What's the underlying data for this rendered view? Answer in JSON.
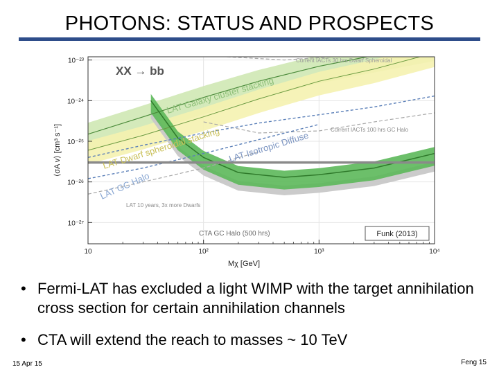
{
  "slide": {
    "title": "PHOTONS: STATUS AND PROSPECTS",
    "bullets": [
      "Fermi-LAT has excluded a light WIMP with the target annihilation cross section for certain annihilation channels",
      "CTA will extend the reach to masses ~ 10 TeV"
    ],
    "footer_date": "15 Apr 15",
    "footer_author": "Feng  15"
  },
  "chart_data": {
    "type": "line",
    "title": "XX → bb",
    "xlabel": "Mχ [GeV]",
    "ylabel": "⟨σA v⟩ [cm³ s⁻¹]",
    "xscale": "log",
    "yscale": "log",
    "xlim": [
      10,
      10000
    ],
    "ylim": [
      3e-28,
      1.2e-23
    ],
    "x_tick_labels": [
      "10",
      "10²",
      "10³",
      "10⁴"
    ],
    "y_tick_labels": [
      "10⁻²³",
      "10⁻²⁴",
      "10⁻²⁵",
      "10⁻²⁶",
      "10⁻²⁷"
    ],
    "thermal_cross_section": 3e-26,
    "source": "Funk (2013)",
    "series": [
      {
        "name": "Current IACTs 30 hrs Dwarf Spheroidal",
        "style": "gray-dashed",
        "x": [
          160,
          500,
          2000,
          10000
        ],
        "y": [
          1.2e-23,
          1e-23,
          1.3e-23,
          1.9e-23
        ]
      },
      {
        "name": "LAT Galaxy cluster stacking",
        "style": "light-green-band",
        "x": [
          10,
          30,
          100,
          300,
          1000,
          3000,
          10000
        ],
        "y": [
          1.5e-25,
          4e-25,
          1.2e-24,
          3e-24,
          7e-24,
          1.3e-23,
          2.5e-23
        ]
      },
      {
        "name": "Current IACTs 100 hrs GC Halo",
        "style": "gray-dashed",
        "x": [
          100,
          300,
          1000,
          3000,
          10000
        ],
        "y": [
          3e-25,
          1.6e-25,
          1.8e-25,
          3e-25,
          5e-25
        ]
      },
      {
        "name": "LAT Dwarf spheroidal stacking",
        "style": "yellow-band",
        "x": [
          10,
          30,
          100,
          300,
          1000,
          3000,
          10000
        ],
        "y": [
          6e-26,
          1.4e-25,
          4e-25,
          1.1e-24,
          3e-24,
          6e-24,
          1.5e-23
        ]
      },
      {
        "name": "LAT Isotropic Diffuse",
        "style": "blue-dashed",
        "x": [
          10,
          30,
          100,
          300,
          1000,
          3000,
          10000
        ],
        "y": [
          4e-26,
          8e-26,
          1.6e-25,
          2.8e-25,
          4.5e-25,
          7e-25,
          1.3e-24
        ]
      },
      {
        "name": "LAT GC Halo",
        "style": "blue-dashed",
        "x": [
          10,
          30,
          100,
          300,
          1000
        ],
        "y": [
          1.2e-26,
          2.2e-26,
          5e-26,
          1.1e-25,
          2.6e-25
        ]
      },
      {
        "name": "LAT 10 years, 3x more Dwarfs",
        "style": "gray-dashed",
        "x": [
          10,
          30,
          100,
          300
        ],
        "y": [
          5e-27,
          1e-26,
          2.2e-26,
          5.5e-26
        ]
      },
      {
        "name": "CTA GC Halo (500 hrs)",
        "style": "green-band",
        "x": [
          35,
          60,
          100,
          200,
          500,
          1000,
          3000,
          10000
        ],
        "y": [
          1e-24,
          1.2e-25,
          4e-26,
          1.7e-26,
          1.3e-26,
          1.5e-26,
          2.2e-26,
          5e-26
        ]
      }
    ]
  }
}
